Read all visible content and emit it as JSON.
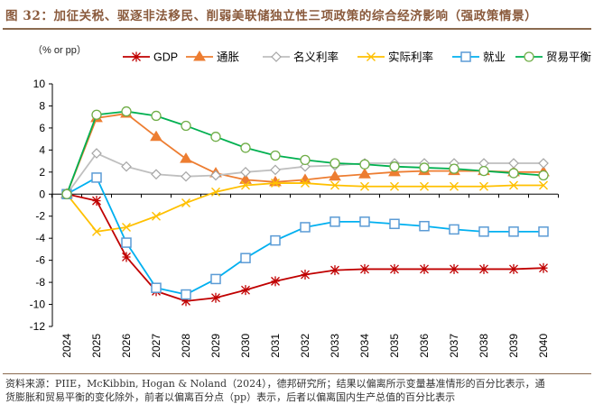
{
  "figure": {
    "title": "图 32：加征关税、驱逐非法移民、削弱美联储独立性三项政策的综合经济影响（强政策情景）",
    "unit_label": "（% or pp）",
    "footer_lines": [
      "资料来源：PIIE，McKibbin, Hogan & Noland（2024），德邦研究所；结果以偏离所示变量基准情形的百分比表示，通",
      "货膨胀和贸易平衡的变化除外，前者以偏离百分点（pp）表示，后者以偏离国内生产总值的百分比表示"
    ]
  },
  "chart_data": {
    "type": "line",
    "title": "加征关税、驱逐非法移民、削弱美联储独立性三项政策的综合经济影响（强政策情景）",
    "xlabel": "",
    "ylabel": "% or pp",
    "x": [
      "2024",
      "2025",
      "2026",
      "2027",
      "2028",
      "2029",
      "2030",
      "2031",
      "2032",
      "2033",
      "2034",
      "2035",
      "2036",
      "2037",
      "2038",
      "2039",
      "2040"
    ],
    "ylim": [
      -12,
      10
    ],
    "yticks": [
      10,
      8,
      6,
      4,
      2,
      0,
      -2,
      -4,
      -6,
      -8,
      -10,
      -12
    ],
    "grid": false,
    "legend_position": "top",
    "series": [
      {
        "name": "GDP",
        "color": "#c00000",
        "marker": "star",
        "values": [
          0,
          -0.6,
          -5.7,
          -8.8,
          -9.7,
          -9.4,
          -8.7,
          -7.9,
          -7.3,
          -6.9,
          -6.8,
          -6.8,
          -6.8,
          -6.8,
          -6.8,
          -6.8,
          -6.7
        ]
      },
      {
        "name": "通胀",
        "color": "#ed7d31",
        "marker": "triangle",
        "values": [
          0,
          6.9,
          7.3,
          5.2,
          3.2,
          1.9,
          1.3,
          1.1,
          1.3,
          1.6,
          1.8,
          2.0,
          2.1,
          2.1,
          2.1,
          2.0,
          2.0
        ]
      },
      {
        "name": "名义利率",
        "color": "#bfbfbf",
        "marker": "diamond",
        "values": [
          0,
          3.7,
          2.5,
          1.8,
          1.6,
          1.7,
          2.0,
          2.2,
          2.5,
          2.6,
          2.8,
          2.8,
          2.8,
          2.8,
          2.8,
          2.8,
          2.8
        ]
      },
      {
        "name": "实际利率",
        "color": "#ffc000",
        "marker": "x",
        "values": [
          0,
          -3.4,
          -3.0,
          -2.0,
          -0.8,
          0.2,
          0.8,
          1.0,
          1.0,
          0.8,
          0.7,
          0.7,
          0.7,
          0.7,
          0.7,
          0.8,
          0.8
        ]
      },
      {
        "name": "就业",
        "color": "#00b0f0",
        "marker": "square",
        "values": [
          0,
          1.5,
          -4.4,
          -8.5,
          -9.1,
          -7.7,
          -5.8,
          -4.2,
          -3.0,
          -2.5,
          -2.5,
          -2.7,
          -2.9,
          -3.2,
          -3.4,
          -3.4,
          -3.4
        ]
      },
      {
        "name": "贸易平衡",
        "color": "#00b050",
        "marker": "circle",
        "values": [
          0,
          7.2,
          7.5,
          7.1,
          6.2,
          5.2,
          4.2,
          3.5,
          3.1,
          2.8,
          2.7,
          2.5,
          2.4,
          2.3,
          2.1,
          1.9,
          1.7
        ]
      }
    ]
  }
}
